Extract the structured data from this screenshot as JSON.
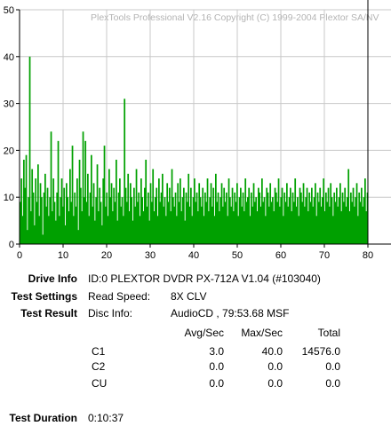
{
  "watermark": "PlexTools Professional V2.16 Copyright (C) 1999-2004 Plextor SA/NV",
  "colors": {
    "bars": "#00a000",
    "grid": "#c8c8c8",
    "axis": "#000000",
    "watermark": "#b4b4b4"
  },
  "chart_data": {
    "type": "bar",
    "xlabel": "",
    "ylabel": "",
    "xlim": [
      0,
      80
    ],
    "ylim": [
      0,
      50
    ],
    "x_ticks": [
      0,
      10,
      20,
      30,
      40,
      50,
      60,
      70,
      80
    ],
    "y_ticks": [
      0,
      10,
      20,
      30,
      40,
      50
    ],
    "grid": true,
    "series": [
      {
        "values": [
          9,
          14,
          6,
          18,
          12,
          19,
          3,
          10,
          40,
          7,
          16,
          11,
          4,
          14,
          9,
          17,
          6,
          13,
          10,
          2,
          11,
          15,
          8,
          12,
          6,
          10,
          24,
          7,
          14,
          9,
          5,
          11,
          22,
          6,
          10,
          14,
          8,
          12,
          4,
          13,
          10,
          7,
          16,
          9,
          21,
          6,
          11,
          8,
          14,
          3,
          18,
          12,
          7,
          24,
          10,
          22,
          9,
          15,
          6,
          11,
          19,
          8,
          13,
          5,
          10,
          17,
          7,
          12,
          9,
          4,
          14,
          21,
          8,
          11,
          6,
          16,
          10,
          13,
          7,
          12,
          9,
          18,
          5,
          11,
          14,
          8,
          10,
          6,
          31,
          12,
          9,
          15,
          7,
          13,
          10,
          5,
          12,
          8,
          16,
          9,
          11,
          6,
          14,
          10,
          7,
          12,
          18,
          8,
          11,
          5,
          13,
          9,
          16,
          7,
          10,
          12,
          6,
          14,
          9,
          11,
          15,
          8,
          10,
          6,
          13,
          9,
          12,
          7,
          16,
          10,
          8,
          11,
          6,
          13,
          9,
          14,
          7,
          10,
          12,
          5,
          11,
          9,
          15,
          8,
          12,
          6,
          10,
          14,
          9,
          11,
          7,
          13,
          10,
          8,
          12,
          6,
          11,
          9,
          14,
          7,
          10,
          13,
          8,
          12,
          6,
          15,
          9,
          11,
          7,
          10,
          13,
          8,
          12,
          9,
          11,
          6,
          14,
          10,
          8,
          12,
          7,
          11,
          9,
          13,
          6,
          10,
          12,
          8,
          11,
          7,
          14,
          9,
          10,
          12,
          6,
          11,
          8,
          13,
          9,
          10,
          7,
          12,
          11,
          8,
          14,
          9,
          10,
          6,
          12,
          11,
          8,
          13,
          9,
          10,
          7,
          12,
          11,
          9,
          14,
          8,
          10,
          12,
          6,
          11,
          9,
          13,
          8,
          10,
          12,
          7,
          11,
          9,
          14,
          8,
          10,
          6,
          12,
          11,
          9,
          13,
          8,
          10,
          12,
          7,
          11,
          9,
          12,
          8,
          10,
          13,
          6,
          11,
          9,
          12,
          8,
          10,
          14,
          7,
          11,
          9,
          12,
          8,
          13,
          10,
          6,
          11,
          9,
          12,
          8,
          10,
          13,
          7,
          11,
          9,
          12,
          8,
          10,
          16,
          7,
          11,
          9,
          12,
          8,
          10,
          13,
          6,
          11,
          9,
          12,
          8,
          10,
          14,
          7,
          11
        ]
      }
    ]
  },
  "info": {
    "drive_label": "Drive Info",
    "drive_value": "ID:0 PLEXTOR DVDR PX-712A V1.04 (#103040)",
    "settings_label": "Test Settings",
    "read_speed_label": "Read Speed:",
    "read_speed_value": "8X CLV",
    "result_label": "Test Result",
    "disc_info_label": "Disc Info:",
    "disc_info_value": "AudioCD , 79:53.68 MSF",
    "table_headers": [
      "Avg/Sec",
      "Max/Sec",
      "Total"
    ],
    "rows": [
      {
        "name": "C1",
        "avg": "3.0",
        "max": "40.0",
        "total": "14576.0"
      },
      {
        "name": "C2",
        "avg": "0.0",
        "max": "0.0",
        "total": "0.0"
      },
      {
        "name": "CU",
        "avg": "0.0",
        "max": "0.0",
        "total": "0.0"
      }
    ],
    "duration_label": "Test Duration",
    "duration_value": "0:10:37"
  }
}
